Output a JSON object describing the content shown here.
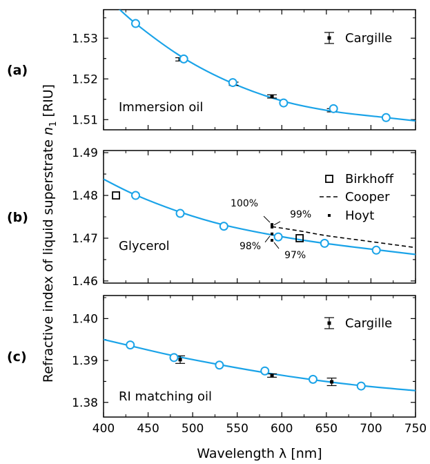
{
  "figure": {
    "ylabel": "Refractive index of liquid superstrate n_1 [RIU]",
    "ylabel_main": "Refractive index of liquid superstrate ",
    "ylabel_symbol": "n",
    "ylabel_sub": "1",
    "ylabel_unit": " [RIU]",
    "xlabel": "Wavelength λ [nm]",
    "colors": {
      "fit": "#1aa3e8",
      "marker_open": "#1aa3e8",
      "data": "#000000"
    }
  },
  "chart_data": [
    {
      "type": "scatter",
      "panel_label": "(a)",
      "annotation": "Immersion oil",
      "xlim": [
        400,
        750
      ],
      "ylim": [
        1.5075,
        1.537
      ],
      "xticks": [
        400,
        450,
        500,
        550,
        600,
        650,
        700,
        750
      ],
      "yticks": [
        1.51,
        1.52,
        1.53
      ],
      "ytick_labels": [
        "1.51",
        "1.52",
        "1.53"
      ],
      "grid": false,
      "legend": {
        "placement": "top-right",
        "entries": [
          "Cargille"
        ]
      },
      "series": [
        {
          "name": "Cargille",
          "kind": "errorbar",
          "points": [
            {
              "x": 486,
              "y": 1.5248,
              "err": 0.0004
            },
            {
              "x": 546,
              "y": 1.5188,
              "err": 0.0004
            },
            {
              "x": 589,
              "y": 1.5157,
              "err": 0.0004
            },
            {
              "x": 656,
              "y": 1.5123,
              "err": 0.0004
            }
          ]
        },
        {
          "kind": "open_circle",
          "x": [
            436,
            490,
            545,
            602,
            658,
            717
          ],
          "y": [
            1.5336,
            1.5249,
            1.5191,
            1.5141,
            1.5127,
            1.5105
          ]
        },
        {
          "kind": "fit_curve",
          "x": [
            400,
            436,
            490,
            545,
            602,
            658,
            717,
            750
          ],
          "y": [
            1.5408,
            1.5336,
            1.5251,
            1.5189,
            1.5145,
            1.512,
            1.5105,
            1.5097
          ]
        }
      ]
    },
    {
      "type": "scatter",
      "panel_label": "(b)",
      "annotation": "Glycerol",
      "xlim": [
        400,
        750
      ],
      "ylim": [
        1.4595,
        1.4905
      ],
      "xticks": [
        400,
        450,
        500,
        550,
        600,
        650,
        700,
        750
      ],
      "yticks": [
        1.46,
        1.47,
        1.48,
        1.49
      ],
      "ytick_labels": [
        "1.46",
        "1.47",
        "1.48",
        "1.49"
      ],
      "grid": false,
      "legend": {
        "placement": "top-right",
        "entries": [
          "Birkhoff",
          "Cooper",
          "Hoyt"
        ]
      },
      "series": [
        {
          "name": "Birkhoff",
          "kind": "open_square",
          "x": [
            414,
            620
          ],
          "y": [
            1.48,
            1.47
          ]
        },
        {
          "name": "Cooper",
          "kind": "dashed_line",
          "x": [
            589,
            620,
            650,
            700,
            750
          ],
          "y": [
            1.4727,
            1.4717,
            1.4706,
            1.4692,
            1.4678
          ]
        },
        {
          "name": "Hoyt",
          "kind": "point",
          "x": [
            589,
            589,
            589,
            589
          ],
          "y": [
            1.4732,
            1.4726,
            1.471,
            1.4695
          ],
          "labels": [
            "100%",
            "99%",
            "98%",
            "97%"
          ]
        },
        {
          "kind": "open_circle",
          "x": [
            436,
            486,
            535,
            596,
            648,
            706
          ],
          "y": [
            1.48,
            1.4758,
            1.4728,
            1.4703,
            1.4688,
            1.4672
          ]
        },
        {
          "kind": "fit_curve",
          "x": [
            400,
            436,
            486,
            535,
            596,
            648,
            706,
            750
          ],
          "y": [
            1.4838,
            1.4801,
            1.4761,
            1.4731,
            1.4705,
            1.4688,
            1.4673,
            1.4662
          ]
        }
      ]
    },
    {
      "type": "scatter",
      "panel_label": "(c)",
      "annotation": "RI matching oil",
      "xlim": [
        400,
        750
      ],
      "ylim": [
        1.3765,
        1.4055
      ],
      "xticks": [
        400,
        450,
        500,
        550,
        600,
        650,
        700,
        750
      ],
      "xtick_labels": [
        "400",
        "450",
        "500",
        "550",
        "600",
        "650",
        "700",
        "750"
      ],
      "yticks": [
        1.38,
        1.39,
        1.4
      ],
      "ytick_labels": [
        "1.38",
        "1.39",
        "1.40"
      ],
      "grid": false,
      "legend": {
        "placement": "top-right",
        "entries": [
          "Cargille"
        ]
      },
      "series": [
        {
          "name": "Cargille",
          "kind": "errorbar",
          "points": [
            {
              "x": 486,
              "y": 1.3902,
              "err": 0.0009
            },
            {
              "x": 589,
              "y": 1.3864,
              "err": 0.0004
            },
            {
              "x": 656,
              "y": 1.3849,
              "err": 0.0009
            }
          ]
        },
        {
          "kind": "open_circle",
          "x": [
            430,
            479,
            530,
            581,
            635,
            689
          ],
          "y": [
            1.3937,
            1.3907,
            1.3889,
            1.3875,
            1.3855,
            1.3839
          ]
        },
        {
          "kind": "fit_curve",
          "x": [
            400,
            430,
            479,
            530,
            581,
            635,
            689,
            750
          ],
          "y": [
            1.395,
            1.3935,
            1.3911,
            1.389,
            1.3871,
            1.3854,
            1.384,
            1.3828
          ]
        }
      ]
    }
  ]
}
